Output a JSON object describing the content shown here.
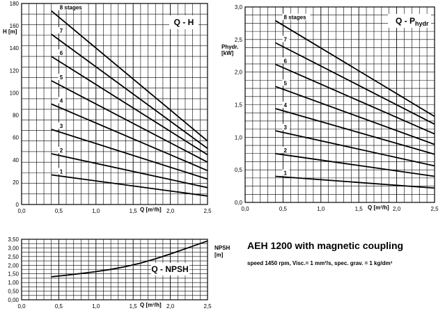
{
  "chart_data": [
    {
      "type": "line",
      "title": "Q - H",
      "ylabel": "H [m]",
      "xlabel": "Q [m³/h]",
      "xlim": [
        0,
        2.5
      ],
      "ylim": [
        0,
        190
      ],
      "x_ticks": [
        "0,0",
        "0,5",
        "1,0",
        "1,5",
        "2,0",
        "2,5"
      ],
      "y_ticks": [
        "0",
        "20",
        "40",
        "60",
        "80",
        "100",
        "120",
        "140",
        "160",
        "180"
      ],
      "grid": true,
      "series": [
        {
          "name": "1",
          "x": [
            0.4,
            2.5
          ],
          "y": [
            28,
            8
          ]
        },
        {
          "name": "2",
          "x": [
            0.4,
            2.5
          ],
          "y": [
            48,
            16
          ]
        },
        {
          "name": "3",
          "x": [
            0.4,
            2.5
          ],
          "y": [
            71,
            24
          ]
        },
        {
          "name": "4",
          "x": [
            0.4,
            2.5
          ],
          "y": [
            95,
            32
          ]
        },
        {
          "name": "5",
          "x": [
            0.4,
            2.5
          ],
          "y": [
            117,
            40
          ]
        },
        {
          "name": "6",
          "x": [
            0.4,
            2.5
          ],
          "y": [
            140,
            47
          ]
        },
        {
          "name": "7",
          "x": [
            0.4,
            2.5
          ],
          "y": [
            161,
            53
          ]
        },
        {
          "name": "8 stages",
          "x": [
            0.4,
            2.5
          ],
          "y": [
            183,
            60
          ]
        }
      ]
    },
    {
      "type": "line",
      "title": "Q - P",
      "title_sub": "hydr",
      "ylabel": "Phydr. [kW]",
      "xlabel": "Q [m³/h]",
      "xlim": [
        0,
        2.5
      ],
      "ylim": [
        0,
        3.0
      ],
      "x_ticks": [
        "0,0",
        "0,5",
        "1,0",
        "1,5",
        "2,0",
        "2,5"
      ],
      "y_ticks": [
        "0,0",
        "0,5",
        "1,0",
        "1,5",
        "2,0",
        "2,5",
        "3,0"
      ],
      "grid": true,
      "series": [
        {
          "name": "1",
          "x": [
            0.4,
            2.5
          ],
          "y": [
            0.4,
            0.22
          ]
        },
        {
          "name": "2",
          "x": [
            0.4,
            2.5
          ],
          "y": [
            0.75,
            0.4
          ]
        },
        {
          "name": "3",
          "x": [
            0.4,
            2.5
          ],
          "y": [
            1.1,
            0.56
          ]
        },
        {
          "name": "4",
          "x": [
            0.4,
            2.5
          ],
          "y": [
            1.44,
            0.74
          ]
        },
        {
          "name": "5",
          "x": [
            0.4,
            2.5
          ],
          "y": [
            1.78,
            0.89
          ]
        },
        {
          "name": "6",
          "x": [
            0.4,
            2.5
          ],
          "y": [
            2.12,
            1.05
          ]
        },
        {
          "name": "7",
          "x": [
            0.4,
            2.5
          ],
          "y": [
            2.45,
            1.2
          ]
        },
        {
          "name": "8 stages",
          "x": [
            0.4,
            2.5
          ],
          "y": [
            2.79,
            1.32
          ]
        }
      ]
    },
    {
      "type": "line",
      "title": "Q - NPSH",
      "ylabel": "NPSH [m]",
      "xlabel": "Q [m³/h]",
      "xlim": [
        0,
        2.5
      ],
      "ylim": [
        0,
        3.5
      ],
      "x_ticks": [
        "0,0",
        "0,5",
        "1,0",
        "1,5",
        "2,0",
        "2,5"
      ],
      "y_ticks": [
        "0,00",
        "0,50",
        "1,00",
        "1,50",
        "2,00",
        "2,50",
        "3,00",
        "3,50"
      ],
      "grid": true,
      "series": [
        {
          "name": "NPSH",
          "x": [
            0.4,
            0.6,
            0.8,
            1.0,
            1.2,
            1.4,
            1.6,
            1.8,
            2.0,
            2.2,
            2.4,
            2.5
          ],
          "y": [
            1.33,
            1.42,
            1.52,
            1.63,
            1.76,
            1.92,
            2.12,
            2.37,
            2.65,
            2.95,
            3.25,
            3.4
          ]
        }
      ]
    }
  ],
  "info": {
    "title": "AEH 1200 with magnetic coupling",
    "conditions": "speed 1450 rpm, Visc.=  1 mm²/s, spec. grav. =  1 kg/dm³"
  }
}
